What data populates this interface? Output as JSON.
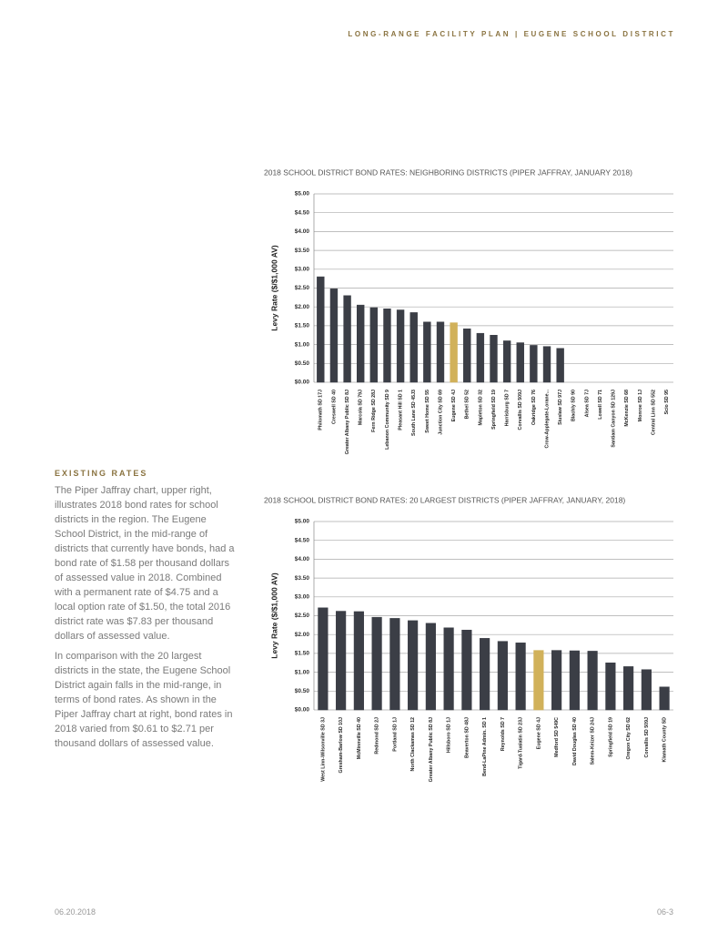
{
  "header": {
    "title": "LONG-RANGE FACILITY PLAN | EUGENE SCHOOL DISTRICT"
  },
  "sidebar": {
    "heading": "EXISTING RATES",
    "paragraphs": [
      "The Piper Jaffray chart, upper right, illustrates 2018 bond rates for school districts in the region. The Eugene School District, in the mid-range of districts that currently have bonds, had a bond rate of $1.58 per thousand dollars of assessed value in 2018. Combined with a permanent rate of $4.75 and a local option rate of $1.50, the total 2016 district rate was $7.83 per thousand dollars of assessed value.",
      "In comparison with the 20 largest districts in the state, the Eugene School District again falls in the mid-range, in terms of bond rates. As shown in the Piper Jaffray chart at right, bond rates in 2018 varied from $0.61 to $2.71 per thousand dollars of assessed value."
    ]
  },
  "chart_data": [
    {
      "type": "bar",
      "title": "2018 SCHOOL DISTRICT BOND RATES: NEIGHBORING DISTRICTS (PIPER JAFFRAY, JANUARY 2018)",
      "y_label": "Levy Rate ($/$1,000 AV)",
      "categories": [
        "Philomath SD 17J",
        "Creswell SD 40",
        "Greater Albany Public SD 8J",
        "Marcola SD 79J",
        "Fern Ridge SD 28J",
        "Lebanon Community SD 9",
        "Pleasant Hill SD 1",
        "South Lane SD 45J3",
        "Sweet Home SD 55",
        "Junction City SD 69",
        "Eugene SD 4J",
        "Bethel SD 52",
        "Mapleton SD 32",
        "Springfield SD 19",
        "Harrisburg SD 7",
        "Corvallis SD 509J",
        "Oakridge SD 76",
        "Crow-Applegate-Lorane...",
        "Siuslaw SD 97J",
        "Blachly SD 90",
        "Alsea SD 7J",
        "Lowell SD 71",
        "Santiam Canyon SD 129J",
        "McKenzie SD 68",
        "Monroe SD 1J",
        "Central Linn SD 552",
        "Scio SD 95"
      ],
      "values": [
        2.8,
        2.48,
        2.3,
        2.05,
        1.98,
        1.95,
        1.92,
        1.85,
        1.6,
        1.6,
        1.58,
        1.42,
        1.3,
        1.25,
        1.1,
        1.05,
        0.98,
        0.95,
        0.9,
        0,
        0,
        0,
        0,
        0,
        0,
        0,
        0
      ],
      "colors": [
        "#3b3e46",
        "#3b3e46",
        "#3b3e46",
        "#3b3e46",
        "#3b3e46",
        "#3b3e46",
        "#3b3e46",
        "#3b3e46",
        "#3b3e46",
        "#3b3e46",
        "#d1b15a",
        "#3b3e46",
        "#3b3e46",
        "#3b3e46",
        "#3b3e46",
        "#3b3e46",
        "#3b3e46",
        "#3b3e46",
        "#3b3e46",
        "#3b3e46",
        "#3b3e46",
        "#3b3e46",
        "#3b3e46",
        "#3b3e46",
        "#3b3e46",
        "#3b3e46",
        "#d1b15a"
      ],
      "ylim": [
        0,
        5
      ],
      "yticks": [
        {
          "value": 0,
          "label": "$0.00"
        },
        {
          "value": 0.5,
          "label": "$0.50"
        },
        {
          "value": 1,
          "label": "$1.00"
        },
        {
          "value": 1.5,
          "label": "$1.50"
        },
        {
          "value": 2,
          "label": "$2.00"
        },
        {
          "value": 2.5,
          "label": "$2.50"
        },
        {
          "value": 3,
          "label": "$3.00"
        },
        {
          "value": 3.5,
          "label": "$3.50"
        },
        {
          "value": 4,
          "label": "$4.00"
        },
        {
          "value": 4.5,
          "label": "$4.50"
        },
        {
          "value": 5,
          "label": "$5.00"
        }
      ],
      "grid": true
    },
    {
      "type": "bar",
      "title": "2018 SCHOOL DISTRICT BOND RATES: 20 LARGEST DISTRICTS (PIPER JAFFRAY, JANUARY, 2018)",
      "y_label": "Levy Rate ($/$1,000 AV)",
      "categories": [
        "West Linn-Wilsonville SD 3J",
        "Gresham-Barlow SD 10J",
        "McMinnville SD 40",
        "Redmond SD 2J",
        "Portland SD 1J",
        "North Clackamas SD 12",
        "Greater Albany Public SD 8J",
        "Hillsboro SD 1J",
        "Beaverton SD 48J",
        "Bend-LaPine Admin. SD 1",
        "Reynolds SD 7",
        "Tigard-Tualatin SD 23J",
        "Eugene SD 4J",
        "Medford SD 549C",
        "David Douglas SD 40",
        "Salem-Keizer SD 24J",
        "Springfield SD 19",
        "Oregon City SD 62",
        "Corvallis SD 509J",
        "Klamath County SD"
      ],
      "values": [
        2.71,
        2.62,
        2.61,
        2.46,
        2.43,
        2.37,
        2.3,
        2.18,
        2.12,
        1.9,
        1.82,
        1.78,
        1.58,
        1.58,
        1.57,
        1.56,
        1.25,
        1.15,
        1.07,
        0.61
      ],
      "colors": [
        "#3b3e46",
        "#3b3e46",
        "#3b3e46",
        "#3b3e46",
        "#3b3e46",
        "#3b3e46",
        "#3b3e46",
        "#3b3e46",
        "#3b3e46",
        "#3b3e46",
        "#3b3e46",
        "#3b3e46",
        "#d1b15a",
        "#3b3e46",
        "#3b3e46",
        "#3b3e46",
        "#3b3e46",
        "#3b3e46",
        "#3b3e46",
        "#3b3e46"
      ],
      "ylim": [
        0,
        5
      ],
      "yticks": [
        {
          "value": 0,
          "label": "$0.00"
        },
        {
          "value": 0.5,
          "label": "$0.50"
        },
        {
          "value": 1,
          "label": "$1.00"
        },
        {
          "value": 1.5,
          "label": "$1.50"
        },
        {
          "value": 2,
          "label": "$2.00"
        },
        {
          "value": 2.5,
          "label": "$2.50"
        },
        {
          "value": 3,
          "label": "$3.00"
        },
        {
          "value": 3.5,
          "label": "$3.50"
        },
        {
          "value": 4,
          "label": "$4.00"
        },
        {
          "value": 4.5,
          "label": "$4.50"
        },
        {
          "value": 5,
          "label": "$5.00"
        }
      ],
      "grid": true
    }
  ],
  "footer": {
    "date": "06.20.2018",
    "page": "06-3"
  }
}
